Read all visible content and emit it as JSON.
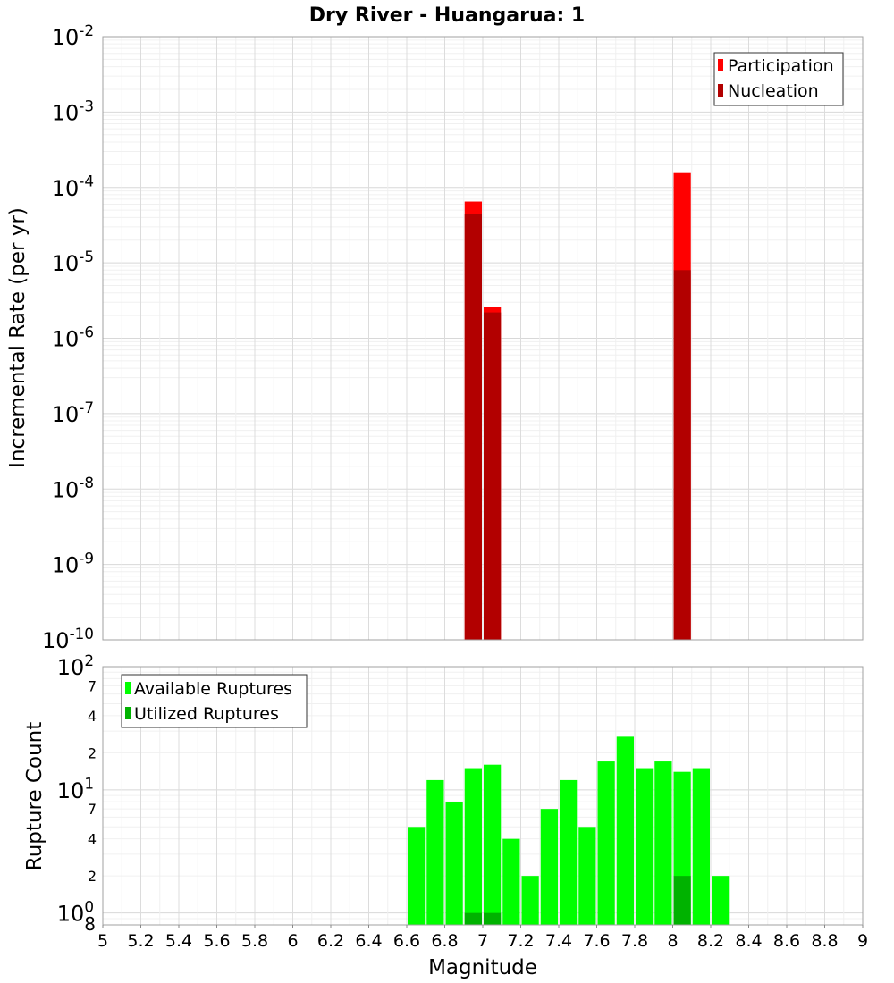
{
  "chart_data": [
    {
      "type": "bar",
      "title": "Dry River - Huangarua: 1",
      "ylabel": "Incremental Rate (per yr)",
      "xlabel": "",
      "yscale": "log",
      "ylim": [
        1e-10,
        0.01
      ],
      "xlim": [
        5,
        9
      ],
      "y_tick_labels": [
        {
          "base": "10",
          "exp": "-2"
        },
        {
          "base": "10",
          "exp": "-3"
        },
        {
          "base": "10",
          "exp": "-4"
        },
        {
          "base": "10",
          "exp": "-5"
        },
        {
          "base": "10",
          "exp": "-6"
        },
        {
          "base": "10",
          "exp": "-7"
        },
        {
          "base": "10",
          "exp": "-8"
        },
        {
          "base": "10",
          "exp": "-9"
        },
        {
          "base": "10",
          "exp": "-10"
        }
      ],
      "legend": {
        "position": "top-right",
        "entries": [
          "Participation",
          "Nucleation"
        ]
      },
      "series": [
        {
          "name": "Participation",
          "color": "#ff0000",
          "points": [
            {
              "x": 6.95,
              "y": 6.5e-05
            },
            {
              "x": 7.05,
              "y": 2.6e-06
            },
            {
              "x": 8.05,
              "y": 0.000155
            }
          ]
        },
        {
          "name": "Nucleation",
          "color": "#b20000",
          "points": [
            {
              "x": 6.95,
              "y": 4.5e-05
            },
            {
              "x": 7.05,
              "y": 2.2e-06
            },
            {
              "x": 8.05,
              "y": 8e-06
            }
          ]
        }
      ]
    },
    {
      "type": "bar",
      "title": "",
      "ylabel": "Rupture Count",
      "xlabel": "Magnitude",
      "yscale": "log",
      "ylim": [
        0.8,
        100
      ],
      "xlim": [
        5,
        9
      ],
      "x_ticks": [
        "5",
        "5.2",
        "5.4",
        "5.6",
        "5.8",
        "6",
        "6.2",
        "6.4",
        "6.6",
        "6.8",
        "7",
        "7.2",
        "7.4",
        "7.6",
        "7.8",
        "8",
        "8.2",
        "8.4",
        "8.6",
        "8.8",
        "9"
      ],
      "y_major_ticks": [
        {
          "value": 100,
          "base": "10",
          "exp": "2"
        },
        {
          "value": 10,
          "base": "10",
          "exp": "1"
        },
        {
          "value": 1,
          "base": "10",
          "exp": "0"
        }
      ],
      "y_minor_ticks": [
        {
          "value": 70,
          "label": "7"
        },
        {
          "value": 40,
          "label": "4"
        },
        {
          "value": 20,
          "label": "2"
        },
        {
          "value": 7,
          "label": "7"
        },
        {
          "value": 4,
          "label": "4"
        },
        {
          "value": 2,
          "label": "2"
        },
        {
          "value": 0.8,
          "label": "8"
        }
      ],
      "legend": {
        "position": "top-left",
        "entries": [
          "Available Ruptures",
          "Utilized Ruptures"
        ]
      },
      "series": [
        {
          "name": "Available Ruptures",
          "color": "#00ff00",
          "points": [
            {
              "x": 6.65,
              "y": 5
            },
            {
              "x": 6.75,
              "y": 12
            },
            {
              "x": 6.85,
              "y": 8
            },
            {
              "x": 6.95,
              "y": 15
            },
            {
              "x": 7.05,
              "y": 16
            },
            {
              "x": 7.15,
              "y": 4
            },
            {
              "x": 7.25,
              "y": 2
            },
            {
              "x": 7.35,
              "y": 7
            },
            {
              "x": 7.45,
              "y": 12
            },
            {
              "x": 7.55,
              "y": 5
            },
            {
              "x": 7.65,
              "y": 17
            },
            {
              "x": 7.75,
              "y": 27
            },
            {
              "x": 7.85,
              "y": 15
            },
            {
              "x": 7.95,
              "y": 17
            },
            {
              "x": 8.05,
              "y": 14
            },
            {
              "x": 8.15,
              "y": 15
            },
            {
              "x": 8.25,
              "y": 2
            }
          ]
        },
        {
          "name": "Utilized Ruptures",
          "color": "#00b200",
          "points": [
            {
              "x": 6.95,
              "y": 1
            },
            {
              "x": 7.05,
              "y": 1
            },
            {
              "x": 8.05,
              "y": 2
            }
          ]
        }
      ]
    }
  ]
}
